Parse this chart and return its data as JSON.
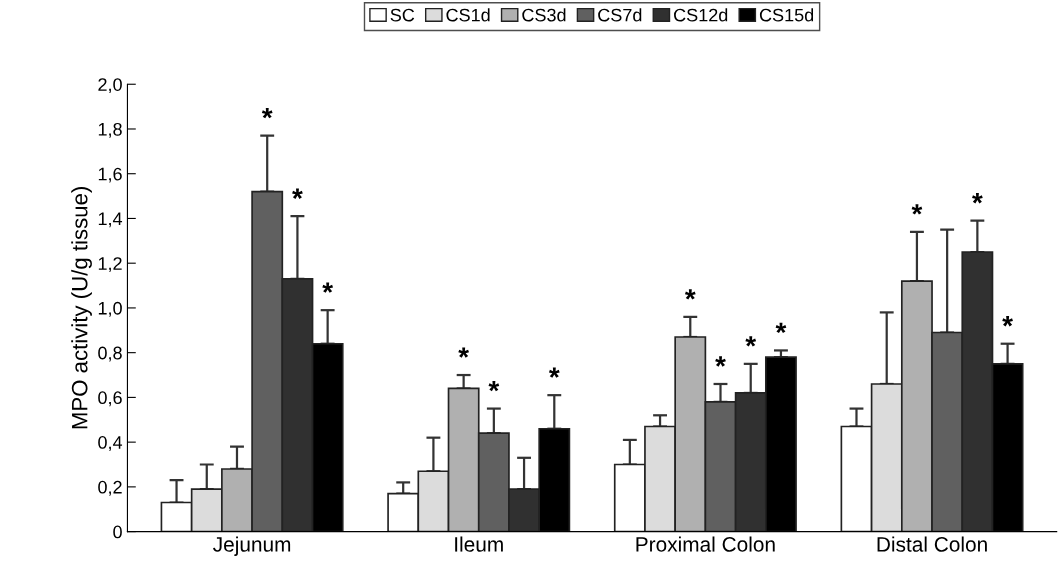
{
  "chart_data": {
    "type": "bar",
    "ylabel": "MPO activity (U/g tissue)",
    "categories": [
      "Jejunum",
      "Ileum",
      "Proximal Colon",
      "Distal Colon"
    ],
    "series": [
      {
        "name": "SC",
        "color": "#ffffff",
        "values": [
          0.13,
          0.17,
          0.3,
          0.47
        ],
        "errors": [
          [
            0.13,
            0.23
          ],
          [
            0.17,
            0.22
          ],
          [
            0.3,
            0.41
          ],
          [
            0.47,
            0.55
          ]
        ],
        "value_labels": [
          null,
          null,
          null,
          null
        ]
      },
      {
        "name": "CS1d",
        "color": "#dcdcdc",
        "values": [
          0.19,
          0.27,
          0.47,
          0.66
        ],
        "errors": [
          [
            0.19,
            0.3
          ],
          [
            0.27,
            0.42
          ],
          [
            0.47,
            0.52
          ],
          [
            0.66,
            0.98
          ]
        ],
        "value_labels": [
          null,
          null,
          null,
          null
        ]
      },
      {
        "name": "CS3d",
        "color": "#b0b0b0",
        "values": [
          0.28,
          0.64,
          0.87,
          1.12
        ],
        "errors": [
          [
            0.28,
            0.38
          ],
          [
            0.64,
            0.7
          ],
          [
            0.87,
            0.96
          ],
          [
            1.12,
            1.34
          ]
        ],
        "value_labels": [
          null,
          "*",
          "*",
          "*"
        ]
      },
      {
        "name": "CS7d",
        "color": "#606060",
        "values": [
          1.52,
          0.44,
          0.58,
          0.89
        ],
        "errors": [
          [
            1.52,
            1.77
          ],
          [
            0.44,
            0.55
          ],
          [
            0.58,
            0.66
          ],
          [
            0.89,
            1.35
          ]
        ],
        "value_labels": [
          "*",
          "*",
          "*",
          null
        ]
      },
      {
        "name": "CS12d",
        "color": "#303030",
        "values": [
          1.13,
          0.19,
          0.62,
          1.25
        ],
        "errors": [
          [
            1.13,
            1.41
          ],
          [
            0.19,
            0.33
          ],
          [
            0.62,
            0.75
          ],
          [
            1.25,
            1.39
          ]
        ],
        "value_labels": [
          "*",
          null,
          "*",
          "*"
        ]
      },
      {
        "name": "CS15d",
        "color": "#000000",
        "values": [
          0.84,
          0.46,
          0.78,
          0.75
        ],
        "errors": [
          [
            0.84,
            0.99
          ],
          [
            0.46,
            0.61
          ],
          [
            0.78,
            0.81
          ],
          [
            0.75,
            0.84
          ]
        ],
        "value_labels": [
          "*",
          "*",
          "*",
          "*"
        ]
      }
    ],
    "ylim": [
      0,
      2.0
    ],
    "yticks": [
      0,
      {
        "value": 0.2,
        "label": "0,2"
      },
      {
        "value": 0.4,
        "label": "0,4"
      },
      {
        "value": 0.6,
        "label": "0,6"
      },
      {
        "value": 0.8,
        "label": "0,8"
      },
      {
        "value": 1.0,
        "label": "1,0"
      },
      {
        "value": 1.2,
        "label": "1,2"
      },
      {
        "value": 1.4,
        "label": "1,4"
      },
      {
        "value": 1.6,
        "label": "1,6"
      },
      {
        "value": 1.8,
        "label": "1,8"
      },
      {
        "value": 2.0,
        "label": "2,0"
      }
    ],
    "grid": false,
    "legend": "top"
  }
}
